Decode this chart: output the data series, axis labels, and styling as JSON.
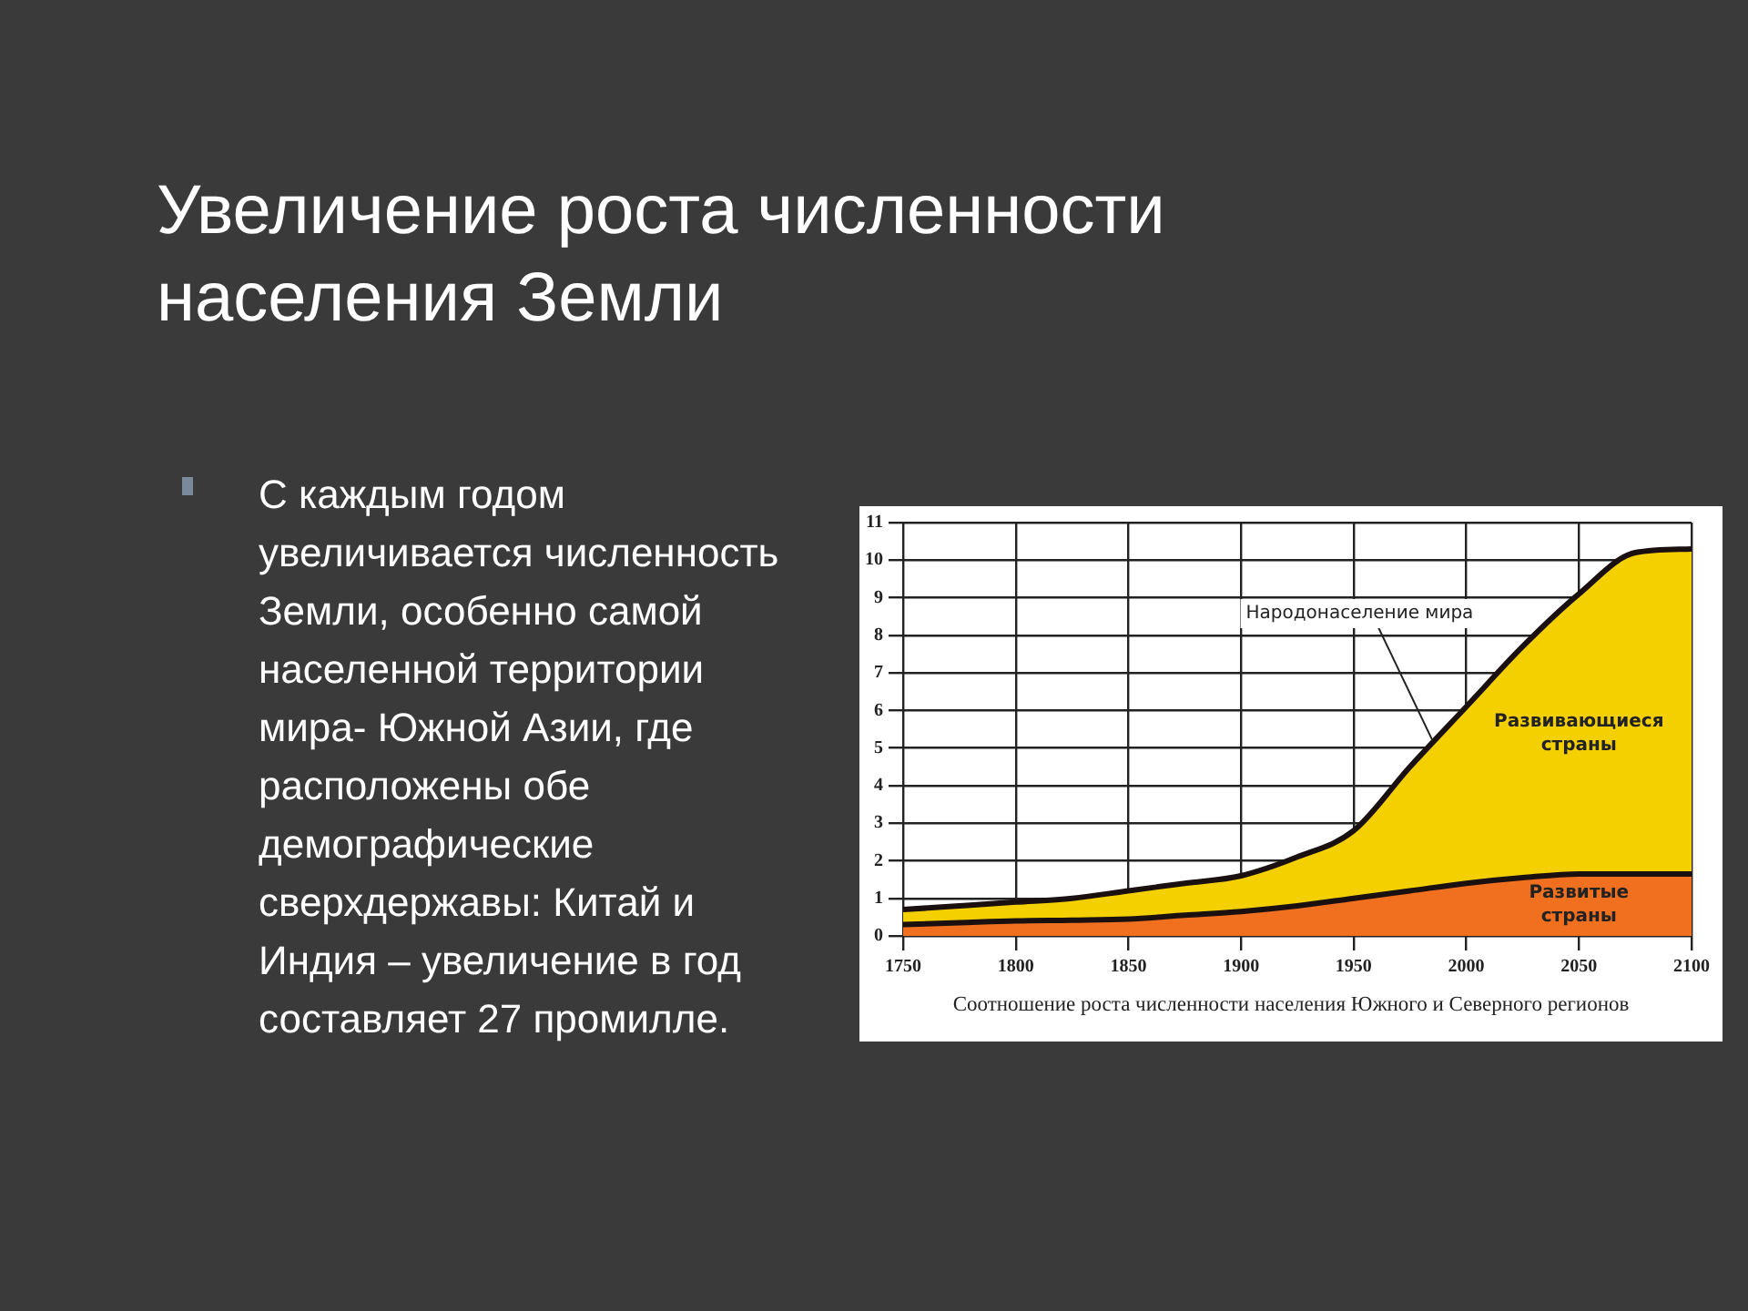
{
  "chart_data": {
    "type": "area",
    "title": "Увеличение роста численности населения Земли",
    "stacked": true,
    "x": [
      1750,
      1775,
      1800,
      1825,
      1850,
      1875,
      1900,
      1925,
      1950,
      1975,
      2000,
      2025,
      2050,
      2075,
      2100
    ],
    "series": [
      {
        "name": "Развитые страны",
        "color": "#f07020",
        "values": [
          0.3,
          0.35,
          0.4,
          0.42,
          0.45,
          0.55,
          0.65,
          0.8,
          1.0,
          1.2,
          1.4,
          1.55,
          1.65,
          1.65,
          1.65
        ]
      },
      {
        "name": "Развивающиеся страны",
        "color": "#f5d000",
        "values": [
          0.4,
          0.45,
          0.5,
          0.58,
          0.75,
          0.85,
          0.95,
          1.3,
          1.8,
          3.3,
          4.7,
          6.15,
          7.45,
          8.55,
          8.65
        ]
      }
    ],
    "xlim": [
      1750,
      2100
    ],
    "xticks": [
      1750,
      1800,
      1850,
      1900,
      1950,
      2000,
      2050,
      2100
    ],
    "ylim": [
      0,
      11
    ],
    "yticks": [
      0,
      1,
      2,
      3,
      4,
      5,
      6,
      7,
      8,
      9,
      10,
      11
    ],
    "grid": true,
    "legend": false,
    "annotations": [
      "С каждым годом увеличивается численность Земли, особенно самой населенной территории мира- Южной Азии, где расположены обе демографические сверхдержавы: Китай и Индия – увеличение в год составляет 27 промилле.",
      {
        "text": "Народонаселение мира",
        "x": 1985,
        "y": 5.2
      },
      "Соотношение роста численности населения Южного и Северного регионов"
    ]
  }
}
